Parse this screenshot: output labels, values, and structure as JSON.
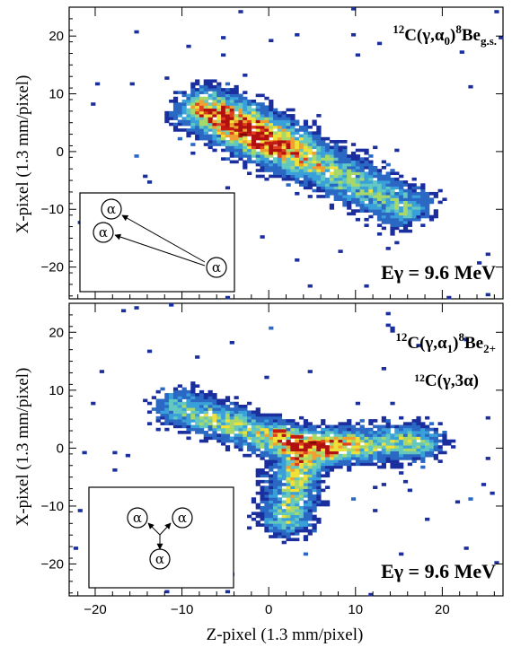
{
  "chart_data": [
    {
      "type": "heatmap",
      "xlabel": "",
      "ylabel": "X-pixel (1.3 mm/pixel)",
      "xlim": [
        -23,
        27
      ],
      "ylim": [
        -25.5,
        25
      ],
      "xticks": [
        -20,
        -10,
        0,
        10,
        20
      ],
      "yticks": [
        -20,
        -10,
        0,
        10,
        20
      ],
      "xtick_labels": [
        "",
        "",
        "",
        "",
        ""
      ],
      "ytick_labels": [
        "−20",
        "−10",
        "0",
        "10",
        "20"
      ],
      "reaction": {
        "base": "C(γ,α",
        "sup_pre": "12",
        "sub_mid": "0",
        "close": ")",
        "sup_mid": "8",
        "tail": "Be",
        "sub_end": "g.s."
      },
      "reaction2": "",
      "energy_label": "Eγ = 9.6 MeV",
      "inset": {
        "type": "linear",
        "particles": [
          "α",
          "α",
          "α"
        ]
      },
      "distribution": {
        "shape": "diagonal band",
        "from": [
          -8,
          8
        ],
        "to": [
          16,
          -10
        ],
        "peak_at": [
          -3,
          3
        ],
        "hot_spots": [
          [
            -3,
            3
          ],
          [
            0,
            1.5
          ],
          [
            -5,
            4
          ]
        ]
      }
    },
    {
      "type": "heatmap",
      "xlabel": "Z-pixel (1.3 mm/pixel)",
      "ylabel": "X-pixel (1.3 mm/pixel)",
      "xlim": [
        -23,
        27
      ],
      "ylim": [
        -25.5,
        25
      ],
      "xticks": [
        -20,
        -10,
        0,
        10,
        20
      ],
      "yticks": [
        -20,
        -10,
        0,
        10,
        20
      ],
      "xtick_labels": [
        "−20",
        "−10",
        "0",
        "10",
        "20"
      ],
      "ytick_labels": [
        "−20",
        "−10",
        "0",
        "10",
        "20"
      ],
      "reaction": {
        "base": "C(γ,α",
        "sup_pre": "12",
        "sub_mid": "1",
        "close": ")",
        "sup_mid": "8",
        "tail": "Be",
        "sub_end": "2+"
      },
      "reaction2": "¹²C(γ,3α)",
      "energy_label": "Eγ = 9.6 MeV",
      "inset": {
        "type": "three-body",
        "particles": [
          "α",
          "α",
          "α"
        ]
      },
      "distribution": {
        "shape": "Y-shaped",
        "peak_at": [
          5,
          1
        ],
        "hot_spots": [
          [
            5,
            1
          ],
          [
            3,
            2
          ],
          [
            1,
            3
          ]
        ]
      }
    }
  ],
  "colors": {
    "scale": [
      "#1a2e9e",
      "#2a68c4",
      "#3aa0da",
      "#63c8c0",
      "#a8d86a",
      "#f0e03a",
      "#f0a030",
      "#e04020",
      "#b01010"
    ]
  }
}
